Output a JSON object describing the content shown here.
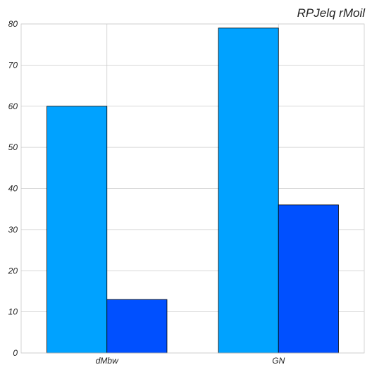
{
  "chart_data": {
    "type": "bar",
    "title": "RPJelq rMoil",
    "xlabel": "",
    "ylabel": "",
    "categories": [
      "dMbw",
      "GN"
    ],
    "series": [
      {
        "values": [
          60,
          79
        ],
        "color": "#00a2ff"
      },
      {
        "values": [
          13,
          36
        ],
        "color": "#0050ff"
      }
    ],
    "ylim": [
      0,
      80
    ],
    "yticks": [
      0,
      10,
      20,
      30,
      40,
      50,
      60,
      70,
      80
    ],
    "grid": true,
    "legend": "none"
  }
}
